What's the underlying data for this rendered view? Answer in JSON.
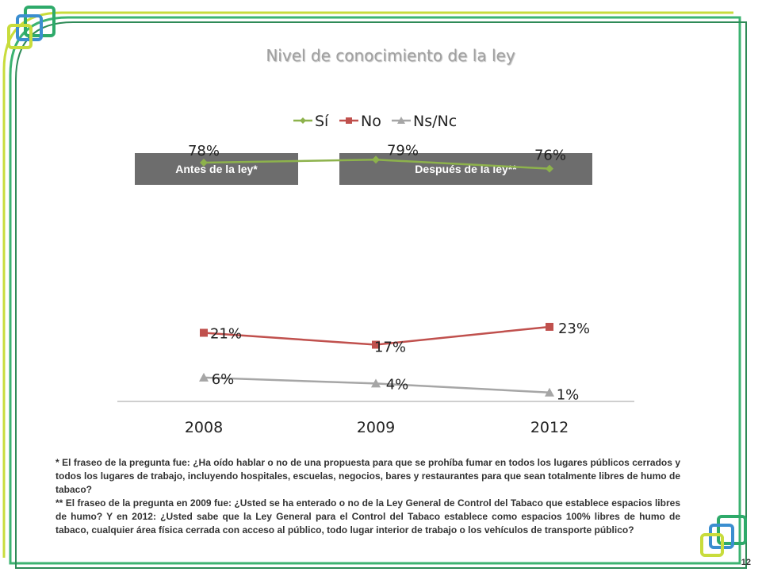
{
  "slide": {
    "page_number": "12"
  },
  "notes": {
    "note1": "* El fraseo de la pregunta fue: ¿Ha oído hablar o no de una propuesta para que se prohíba fumar en todos los lugares públicos cerrados y todos los lugares de trabajo, incluyendo hospitales, escuelas,  negocios, bares y restaurantes para que sean totalmente libres de humo de tabaco?",
    "note2": "** El fraseo de la pregunta en 2009 fue: ¿Usted se ha enterado o no de la Ley General de Control del Tabaco  que establece espacios libres de humo? Y en 2012: ¿Usted sabe que la Ley General para el Control del Tabaco establece como espacios 100% libres de humo de tabaco, cualquier área física cerrada con acceso al público, todo lugar interior de trabajo o los vehículos de transporte público?"
  },
  "periods": {
    "before": "Antes de la ley*",
    "after": "Después de la ley**"
  },
  "colors": {
    "si": "#8db24c",
    "no": "#c0504d",
    "nsnc": "#a6a6a6"
  },
  "chart_data": {
    "type": "line",
    "title": "Nivel de conocimiento de la ley",
    "categories": [
      "2008",
      "2009",
      "2012"
    ],
    "series": [
      {
        "name": "Sí",
        "values": [
          78,
          79,
          76
        ],
        "labels": [
          "78%",
          "79%",
          "76%"
        ]
      },
      {
        "name": "No",
        "values": [
          21,
          17,
          23
        ],
        "labels": [
          "21%",
          "17%",
          "23%"
        ]
      },
      {
        "name": "Ns/Nc",
        "values": [
          6,
          4,
          1
        ],
        "labels": [
          "6%",
          "4%",
          "1%"
        ]
      }
    ],
    "ylim": [
      -2,
      82
    ],
    "legend": "top",
    "grid": false
  }
}
